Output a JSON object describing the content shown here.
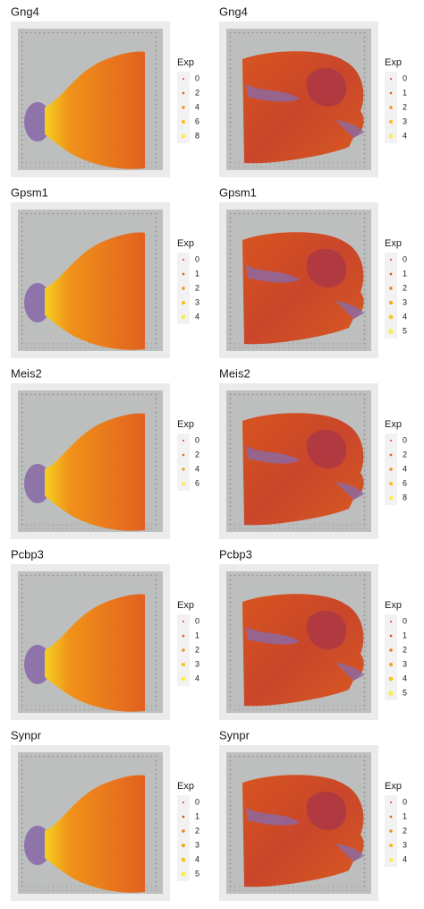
{
  "chart_data": [
    {
      "type": "spatial",
      "title": "Gng4",
      "legend_title": "Exp",
      "legend_values": [
        0,
        2,
        4,
        6,
        8
      ],
      "colors": [
        "#d23b4e",
        "#e8601c",
        "#f0921a",
        "#f5c020",
        "#f7ee55"
      ]
    },
    {
      "type": "spatial",
      "title": "Gng4",
      "legend_title": "Exp",
      "legend_values": [
        0,
        1,
        2,
        3,
        4
      ],
      "colors": [
        "#d23b4e",
        "#e8601c",
        "#f0921a",
        "#f5c020",
        "#f7ee55"
      ]
    },
    {
      "type": "spatial",
      "title": "Gpsm1",
      "legend_title": "Exp",
      "legend_values": [
        0,
        1,
        2,
        3,
        4
      ],
      "colors": [
        "#d23b4e",
        "#e8601c",
        "#f0921a",
        "#f5c020",
        "#f7ee55"
      ]
    },
    {
      "type": "spatial",
      "title": "Gpsm1",
      "legend_title": "Exp",
      "legend_values": [
        0,
        1,
        2,
        3,
        4,
        5
      ],
      "colors": [
        "#c9354f",
        "#e0501f",
        "#ea7a1a",
        "#f2a31c",
        "#f5c828",
        "#f7ee55"
      ]
    },
    {
      "type": "spatial",
      "title": "Meis2",
      "legend_title": "Exp",
      "legend_values": [
        0,
        2,
        4,
        6
      ],
      "colors": [
        "#d23b4e",
        "#e8701c",
        "#f2a81c",
        "#f7ee55"
      ]
    },
    {
      "type": "spatial",
      "title": "Meis2",
      "legend_title": "Exp",
      "legend_values": [
        0,
        2,
        4,
        6,
        8
      ],
      "colors": [
        "#d23b4e",
        "#e8601c",
        "#f0921a",
        "#f5c020",
        "#f7ee55"
      ]
    },
    {
      "type": "spatial",
      "title": "Pcbp3",
      "legend_title": "Exp",
      "legend_values": [
        0,
        1,
        2,
        3,
        4
      ],
      "colors": [
        "#d23b4e",
        "#e8601c",
        "#f0921a",
        "#f5c020",
        "#f7ee55"
      ]
    },
    {
      "type": "spatial",
      "title": "Pcbp3",
      "legend_title": "Exp",
      "legend_values": [
        0,
        1,
        2,
        3,
        4,
        5
      ],
      "colors": [
        "#c9354f",
        "#e0501f",
        "#ea7a1a",
        "#f2a31c",
        "#f5c828",
        "#f7ee55"
      ]
    },
    {
      "type": "spatial",
      "title": "Synpr",
      "legend_title": "Exp",
      "legend_values": [
        0,
        1,
        2,
        3,
        4,
        5
      ],
      "colors": [
        "#c9354f",
        "#e0501f",
        "#ea7a1a",
        "#f2a31c",
        "#f5c828",
        "#f7ee55"
      ]
    },
    {
      "type": "spatial",
      "title": "Synpr",
      "legend_title": "Exp",
      "legend_values": [
        0,
        1,
        2,
        3,
        4
      ],
      "colors": [
        "#d23b4e",
        "#e8601c",
        "#f0921a",
        "#f5c020",
        "#f7ee55"
      ]
    }
  ]
}
